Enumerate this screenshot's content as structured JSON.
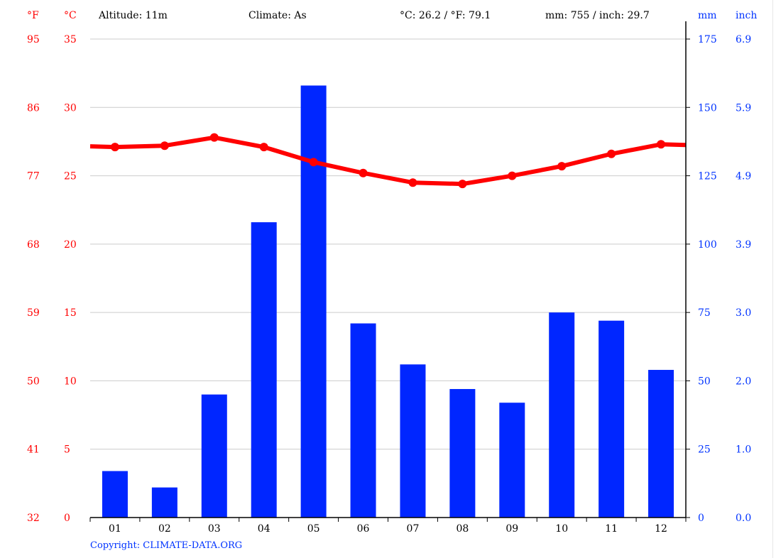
{
  "header": {
    "f_unit": "°F",
    "c_unit": "°C",
    "altitude": "Altitude: 11m",
    "climate": "Climate: As",
    "temp_avg": "°C: 26.2 / °F: 79.1",
    "precip_total": "mm: 755 / inch: 29.7",
    "mm_unit": "mm",
    "inch_unit": "inch"
  },
  "copyright": "Copyright: CLIMATE-DATA.ORG",
  "colors": {
    "temperature": "#ff0000",
    "precipitation": "#0026ff",
    "grid": "#cccccc",
    "axis": "#000000"
  },
  "chart_data": {
    "type": "bar",
    "categories": [
      "01",
      "02",
      "03",
      "04",
      "05",
      "06",
      "07",
      "08",
      "09",
      "10",
      "11",
      "12"
    ],
    "series": [
      {
        "values": [
          17,
          11,
          45,
          108,
          158,
          71,
          56,
          47,
          42,
          75,
          72,
          54
        ],
        "axis": "right",
        "color": "#0026ff",
        "kind": "bar"
      },
      {
        "values": [
          27.1,
          27.2,
          27.8,
          27.1,
          26.0,
          25.2,
          24.5,
          24.4,
          25.0,
          25.7,
          26.6,
          27.3
        ],
        "axis": "left",
        "color": "#ff0000",
        "kind": "line"
      }
    ],
    "left_axis_c": {
      "ticks": [
        "0",
        "5",
        "10",
        "15",
        "20",
        "25",
        "30",
        "35"
      ],
      "range": [
        0,
        35
      ]
    },
    "left_axis_f": {
      "ticks": [
        "32",
        "41",
        "50",
        "59",
        "68",
        "77",
        "86",
        "95"
      ]
    },
    "right_axis_mm": {
      "ticks": [
        "0",
        "25",
        "50",
        "75",
        "100",
        "125",
        "150",
        "175"
      ],
      "range": [
        0,
        175
      ]
    },
    "right_axis_inch": {
      "ticks": [
        "0.0",
        "1.0",
        "2.0",
        "3.0",
        "3.9",
        "4.9",
        "5.9",
        "6.9"
      ]
    },
    "grid": true
  }
}
